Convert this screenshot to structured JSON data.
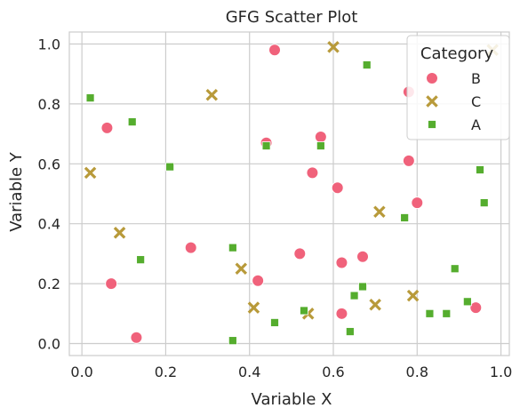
{
  "chart_data": {
    "type": "scatter",
    "title": "GFG Scatter Plot",
    "xlabel": "Variable X",
    "ylabel": "Variable Y",
    "xlim": [
      -0.03,
      1.02
    ],
    "ylim": [
      -0.04,
      1.04
    ],
    "x_ticks": [
      "0.0",
      "0.2",
      "0.4",
      "0.6",
      "0.8",
      "1.0"
    ],
    "y_ticks": [
      "0.0",
      "0.2",
      "0.4",
      "0.6",
      "0.8",
      "1.0"
    ],
    "grid": true,
    "legend": {
      "title": "Category",
      "placement": "top-right"
    },
    "series": [
      {
        "name": "B",
        "marker": "circle",
        "color": "#f0627b",
        "points": [
          [
            0.46,
            0.98
          ],
          [
            0.06,
            0.72
          ],
          [
            0.44,
            0.67
          ],
          [
            0.57,
            0.69
          ],
          [
            0.55,
            0.57
          ],
          [
            0.61,
            0.52
          ],
          [
            0.78,
            0.84
          ],
          [
            0.78,
            0.61
          ],
          [
            0.8,
            0.47
          ],
          [
            0.26,
            0.32
          ],
          [
            0.52,
            0.3
          ],
          [
            0.62,
            0.27
          ],
          [
            0.67,
            0.29
          ],
          [
            0.42,
            0.21
          ],
          [
            0.07,
            0.2
          ],
          [
            0.13,
            0.02
          ],
          [
            0.62,
            0.1
          ],
          [
            0.94,
            0.12
          ]
        ]
      },
      {
        "name": "C",
        "marker": "x",
        "color": "#b89a3a",
        "points": [
          [
            0.6,
            0.99
          ],
          [
            0.98,
            0.98
          ],
          [
            0.31,
            0.83
          ],
          [
            0.02,
            0.57
          ],
          [
            0.71,
            0.44
          ],
          [
            0.09,
            0.37
          ],
          [
            0.38,
            0.25
          ],
          [
            0.41,
            0.12
          ],
          [
            0.54,
            0.1
          ],
          [
            0.7,
            0.13
          ],
          [
            0.79,
            0.16
          ]
        ]
      },
      {
        "name": "A",
        "marker": "square",
        "color": "#55ad2e",
        "points": [
          [
            0.02,
            0.82
          ],
          [
            0.12,
            0.74
          ],
          [
            0.21,
            0.59
          ],
          [
            0.68,
            0.93
          ],
          [
            0.44,
            0.66
          ],
          [
            0.57,
            0.66
          ],
          [
            0.95,
            0.58
          ],
          [
            0.96,
            0.47
          ],
          [
            0.77,
            0.42
          ],
          [
            0.14,
            0.28
          ],
          [
            0.36,
            0.32
          ],
          [
            0.89,
            0.25
          ],
          [
            0.65,
            0.16
          ],
          [
            0.67,
            0.19
          ],
          [
            0.92,
            0.14
          ],
          [
            0.53,
            0.11
          ],
          [
            0.83,
            0.1
          ],
          [
            0.87,
            0.1
          ],
          [
            0.46,
            0.07
          ],
          [
            0.64,
            0.04
          ],
          [
            0.36,
            0.01
          ]
        ]
      }
    ]
  }
}
